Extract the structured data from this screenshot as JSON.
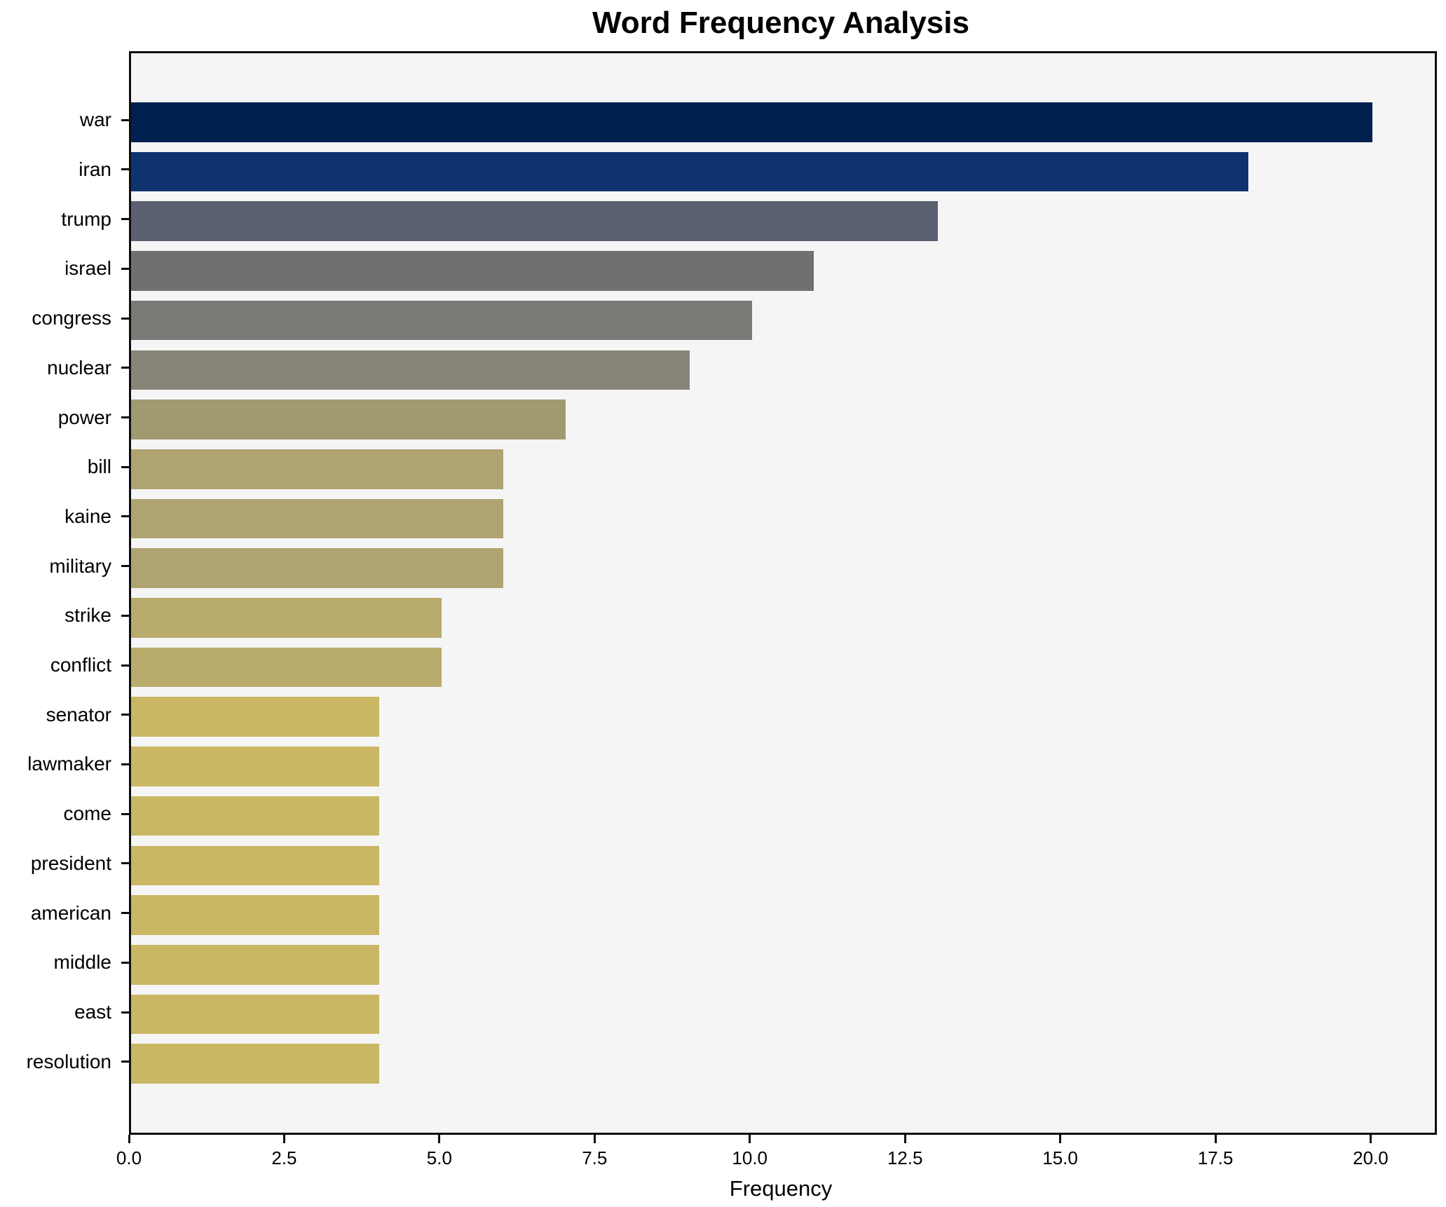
{
  "chart_data": {
    "type": "bar",
    "orientation": "horizontal",
    "title": "Word Frequency Analysis",
    "xlabel": "Frequency",
    "ylabel": "",
    "categories": [
      "war",
      "iran",
      "trump",
      "israel",
      "congress",
      "nuclear",
      "power",
      "bill",
      "kaine",
      "military",
      "strike",
      "conflict",
      "senator",
      "lawmaker",
      "come",
      "president",
      "american",
      "middle",
      "east",
      "resolution"
    ],
    "values": [
      20,
      18,
      13,
      11,
      10,
      9,
      7,
      6,
      6,
      6,
      5,
      5,
      4,
      4,
      4,
      4,
      4,
      4,
      4,
      4
    ],
    "bar_colors": [
      "#002150",
      "#0f336e",
      "#5a6070",
      "#707071",
      "#7b7a76",
      "#898478",
      "#a09a70",
      "#afa371",
      "#afa371",
      "#afa371",
      "#b9ab6b",
      "#b9ab6b",
      "#c9b763",
      "#c9b763",
      "#c9b763",
      "#c9b763",
      "#c9b763",
      "#c9b763",
      "#c9b763",
      "#c9b763"
    ],
    "xlim": [
      0,
      21
    ],
    "xticks": [
      0,
      2.5,
      5,
      7.5,
      10,
      12.5,
      15,
      17.5,
      20
    ],
    "xtick_labels": [
      "0.0",
      "2.5",
      "5.0",
      "7.5",
      "10.0",
      "12.5",
      "15.0",
      "17.5",
      "20.0"
    ],
    "grid": false,
    "legend": null,
    "plot_background": "#f5f5f6",
    "figure_background": "#ffffff",
    "spine_color": "#0d0d0d",
    "text_color": "#000000"
  }
}
